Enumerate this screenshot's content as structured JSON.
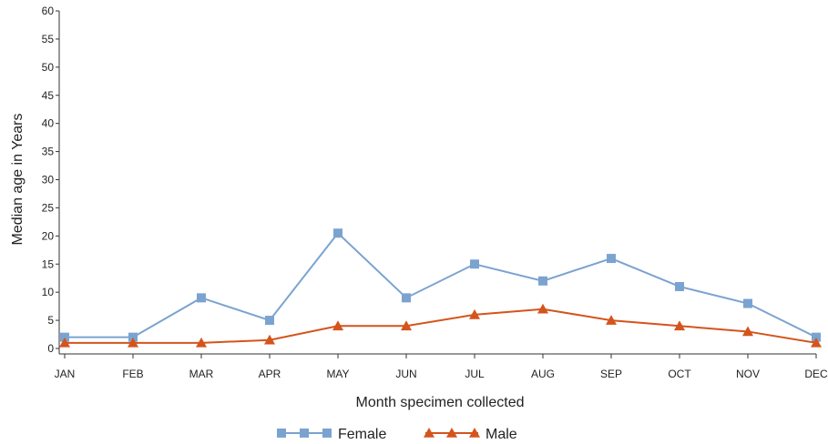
{
  "chart_data": {
    "type": "line",
    "title": "",
    "xlabel": "Month specimen collected",
    "ylabel": "Median age in Years",
    "categories": [
      "JAN",
      "FEB",
      "MAR",
      "APR",
      "MAY",
      "JUN",
      "JUL",
      "AUG",
      "SEP",
      "OCT",
      "NOV",
      "DEC"
    ],
    "ylim": [
      0,
      60
    ],
    "yticks": [
      0,
      5,
      10,
      15,
      20,
      25,
      30,
      35,
      40,
      45,
      50,
      55,
      60
    ],
    "grid": false,
    "legend_position": "bottom",
    "series": [
      {
        "name": "Female",
        "marker": "square",
        "color": "#7ba3d0",
        "values": [
          2,
          2,
          9,
          5,
          20.5,
          9,
          15,
          12,
          16,
          11,
          8,
          2
        ]
      },
      {
        "name": "Male",
        "marker": "triangle",
        "color": "#d4541c",
        "values": [
          1,
          1,
          1,
          1.5,
          4,
          4,
          6,
          7,
          5,
          4,
          3,
          1
        ]
      }
    ]
  }
}
